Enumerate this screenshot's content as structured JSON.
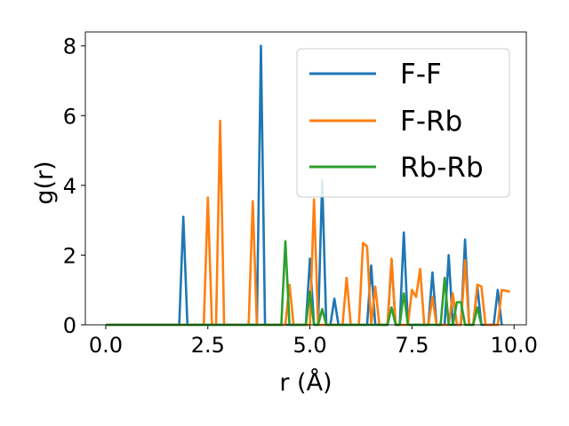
{
  "chart_data": {
    "type": "line",
    "title": "",
    "xlabel": "r (Å)",
    "ylabel": "g(r)",
    "xlim": [
      -0.5,
      10.3
    ],
    "ylim": [
      0,
      8.4
    ],
    "xticks": [
      0.0,
      2.5,
      5.0,
      7.5,
      10.0
    ],
    "xtick_labels": [
      "0.0",
      "2.5",
      "5.0",
      "7.5",
      "10.0"
    ],
    "yticks": [
      0,
      2,
      4,
      6,
      8
    ],
    "ytick_labels": [
      "0",
      "2",
      "4",
      "6",
      "8"
    ],
    "grid": false,
    "legend_position": "top-right",
    "series": [
      {
        "name": "F-F",
        "color": "#1f77b4",
        "points": [
          [
            0,
            0
          ],
          [
            1.8,
            0
          ],
          [
            1.9,
            3.1
          ],
          [
            2.0,
            0
          ],
          [
            3.7,
            0
          ],
          [
            3.8,
            8.0
          ],
          [
            3.9,
            0
          ],
          [
            4.9,
            0
          ],
          [
            5.0,
            1.9
          ],
          [
            5.1,
            0
          ],
          [
            5.2,
            0
          ],
          [
            5.3,
            4.15
          ],
          [
            5.4,
            0
          ],
          [
            5.5,
            0
          ],
          [
            5.6,
            0.75
          ],
          [
            5.7,
            0
          ],
          [
            6.4,
            0
          ],
          [
            6.5,
            1.7
          ],
          [
            6.6,
            0
          ],
          [
            6.9,
            0
          ],
          [
            7.0,
            1.85
          ],
          [
            7.1,
            0
          ],
          [
            7.2,
            0
          ],
          [
            7.3,
            2.65
          ],
          [
            7.4,
            0
          ],
          [
            7.6,
            0
          ],
          [
            7.7,
            0
          ],
          [
            7.9,
            0
          ],
          [
            8.0,
            1.5
          ],
          [
            8.1,
            0
          ],
          [
            8.3,
            0
          ],
          [
            8.4,
            2.0
          ],
          [
            8.5,
            0
          ],
          [
            8.7,
            0
          ],
          [
            8.8,
            2.45
          ],
          [
            8.9,
            0
          ],
          [
            9.0,
            0
          ],
          [
            9.1,
            1.1
          ],
          [
            9.2,
            0
          ],
          [
            9.5,
            0
          ],
          [
            9.6,
            1.0
          ],
          [
            9.7,
            0
          ]
        ]
      },
      {
        "name": "F-Rb",
        "color": "#ff7f0e",
        "points": [
          [
            0,
            0
          ],
          [
            2.4,
            0
          ],
          [
            2.5,
            3.65
          ],
          [
            2.6,
            0
          ],
          [
            2.7,
            0
          ],
          [
            2.8,
            5.85
          ],
          [
            2.9,
            0
          ],
          [
            3.5,
            0
          ],
          [
            3.6,
            3.55
          ],
          [
            3.7,
            0
          ],
          [
            4.4,
            0
          ],
          [
            4.5,
            1.15
          ],
          [
            4.6,
            0
          ],
          [
            4.9,
            0
          ],
          [
            5.0,
            0
          ],
          [
            5.1,
            3.6
          ],
          [
            5.2,
            0
          ],
          [
            5.8,
            0
          ],
          [
            5.9,
            1.35
          ],
          [
            6.0,
            0
          ],
          [
            6.2,
            0
          ],
          [
            6.3,
            2.35
          ],
          [
            6.4,
            2.25
          ],
          [
            6.5,
            0
          ],
          [
            6.6,
            1.1
          ],
          [
            6.7,
            0
          ],
          [
            6.9,
            0
          ],
          [
            7.0,
            1.9
          ],
          [
            7.1,
            0
          ],
          [
            7.4,
            0
          ],
          [
            7.5,
            1.0
          ],
          [
            7.6,
            0.8
          ],
          [
            7.7,
            1.6
          ],
          [
            7.8,
            0
          ],
          [
            7.9,
            0
          ],
          [
            8.0,
            0.8
          ],
          [
            8.1,
            0
          ],
          [
            8.4,
            0
          ],
          [
            8.5,
            0.9
          ],
          [
            8.6,
            0
          ],
          [
            8.7,
            0
          ],
          [
            8.8,
            1.85
          ],
          [
            8.9,
            0
          ],
          [
            9.0,
            0
          ],
          [
            9.1,
            1.15
          ],
          [
            9.2,
            1.1
          ],
          [
            9.3,
            0
          ],
          [
            9.5,
            0
          ],
          [
            9.6,
            0
          ],
          [
            9.7,
            1.0
          ],
          [
            9.9,
            0.95
          ]
        ]
      },
      {
        "name": "Rb-Rb",
        "color": "#2ca02c",
        "points": [
          [
            0,
            0
          ],
          [
            4.3,
            0
          ],
          [
            4.4,
            2.4
          ],
          [
            4.5,
            0
          ],
          [
            4.9,
            0
          ],
          [
            5.0,
            0.95
          ],
          [
            5.1,
            0
          ],
          [
            5.2,
            0
          ],
          [
            5.3,
            0.45
          ],
          [
            5.4,
            0
          ],
          [
            6.9,
            0
          ],
          [
            7.0,
            0.5
          ],
          [
            7.1,
            0
          ],
          [
            7.2,
            0
          ],
          [
            7.3,
            0.9
          ],
          [
            7.4,
            0
          ],
          [
            8.2,
            0
          ],
          [
            8.3,
            1.35
          ],
          [
            8.4,
            0
          ],
          [
            8.5,
            0
          ],
          [
            8.6,
            0.65
          ],
          [
            8.7,
            0.65
          ],
          [
            8.8,
            0
          ],
          [
            9.0,
            0
          ],
          [
            9.1,
            0.5
          ],
          [
            9.2,
            0
          ]
        ]
      }
    ]
  }
}
